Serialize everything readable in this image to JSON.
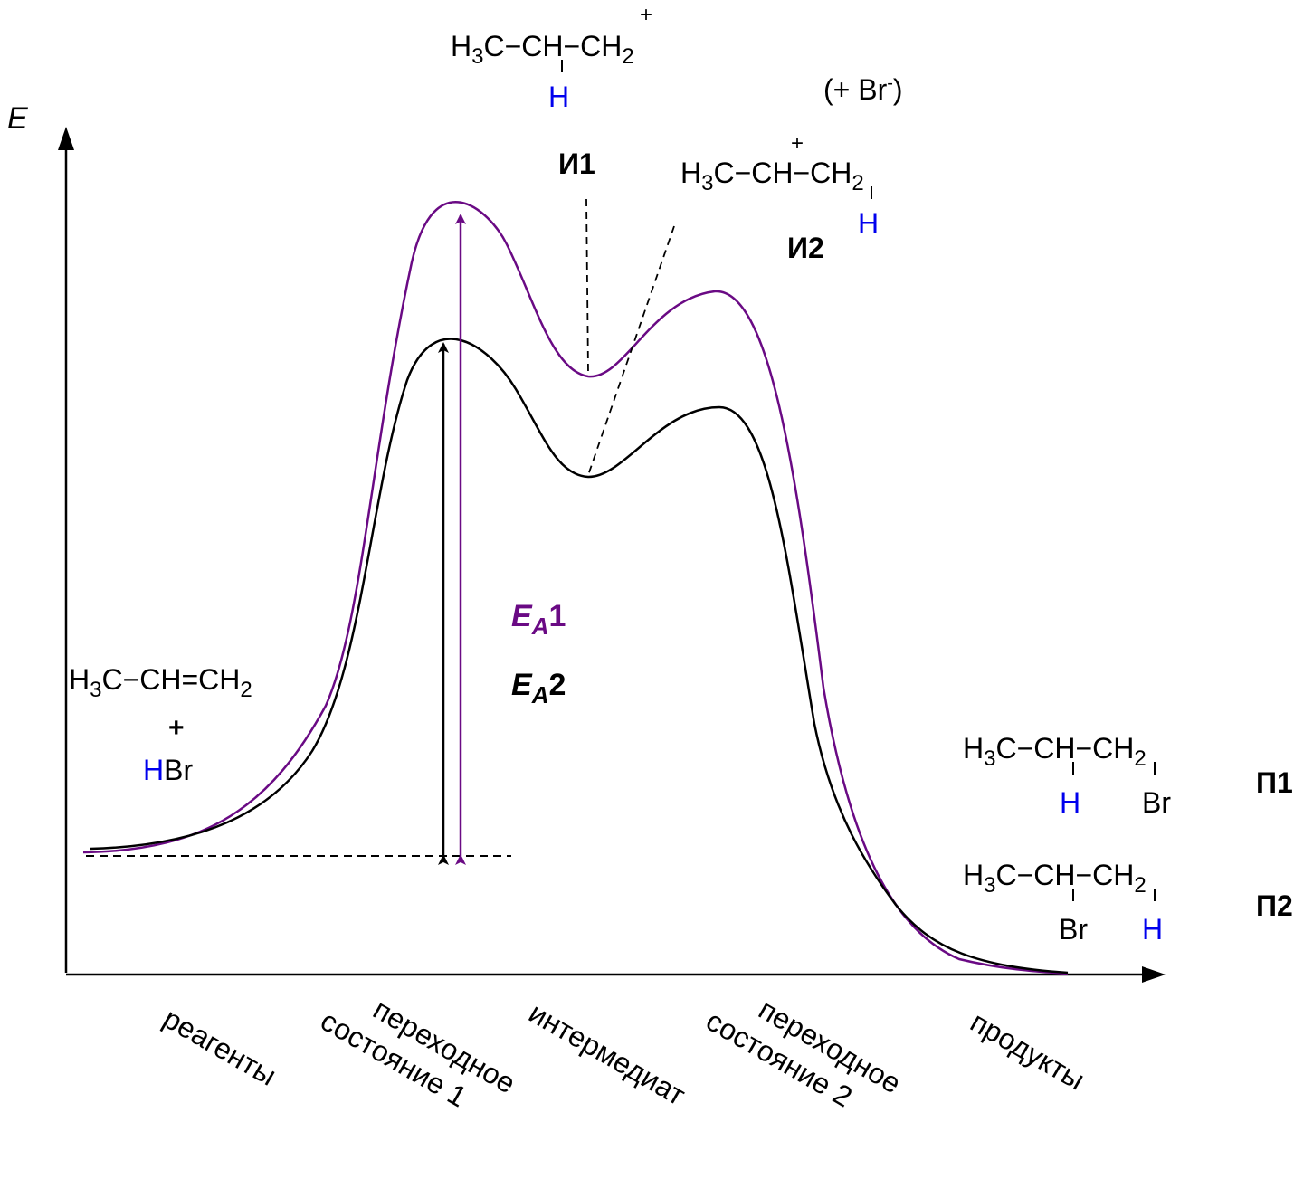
{
  "axis": {
    "y_label": "E",
    "x_categories": [
      [
        "реагенты"
      ],
      [
        "переходное",
        "состояние 1"
      ],
      [
        "интермедиат"
      ],
      [
        "переходное",
        "состояние 2"
      ],
      [
        "продукты"
      ]
    ]
  },
  "labels": {
    "i1": "И1",
    "i2": "И2",
    "p1": "П1",
    "p2": "П2",
    "br_counter": "(+ Br",
    "br_counter_sup": "-",
    "br_counter_close": ")",
    "plus": "+",
    "ea_letter": "E",
    "ea_sub": "A",
    "ea1_num": "1",
    "ea2_num": "2"
  },
  "reagents": {
    "h": "H",
    "sub3": "3",
    "c_dash": "C",
    "ch_eq": "CH=CH",
    "sub2": "2",
    "plus": "+",
    "hbr_h": "H",
    "hbr_br": "Br"
  },
  "colors": {
    "curve1": "#6a0a84",
    "curve2": "#000000",
    "hydrogen": "#0000ee"
  }
}
